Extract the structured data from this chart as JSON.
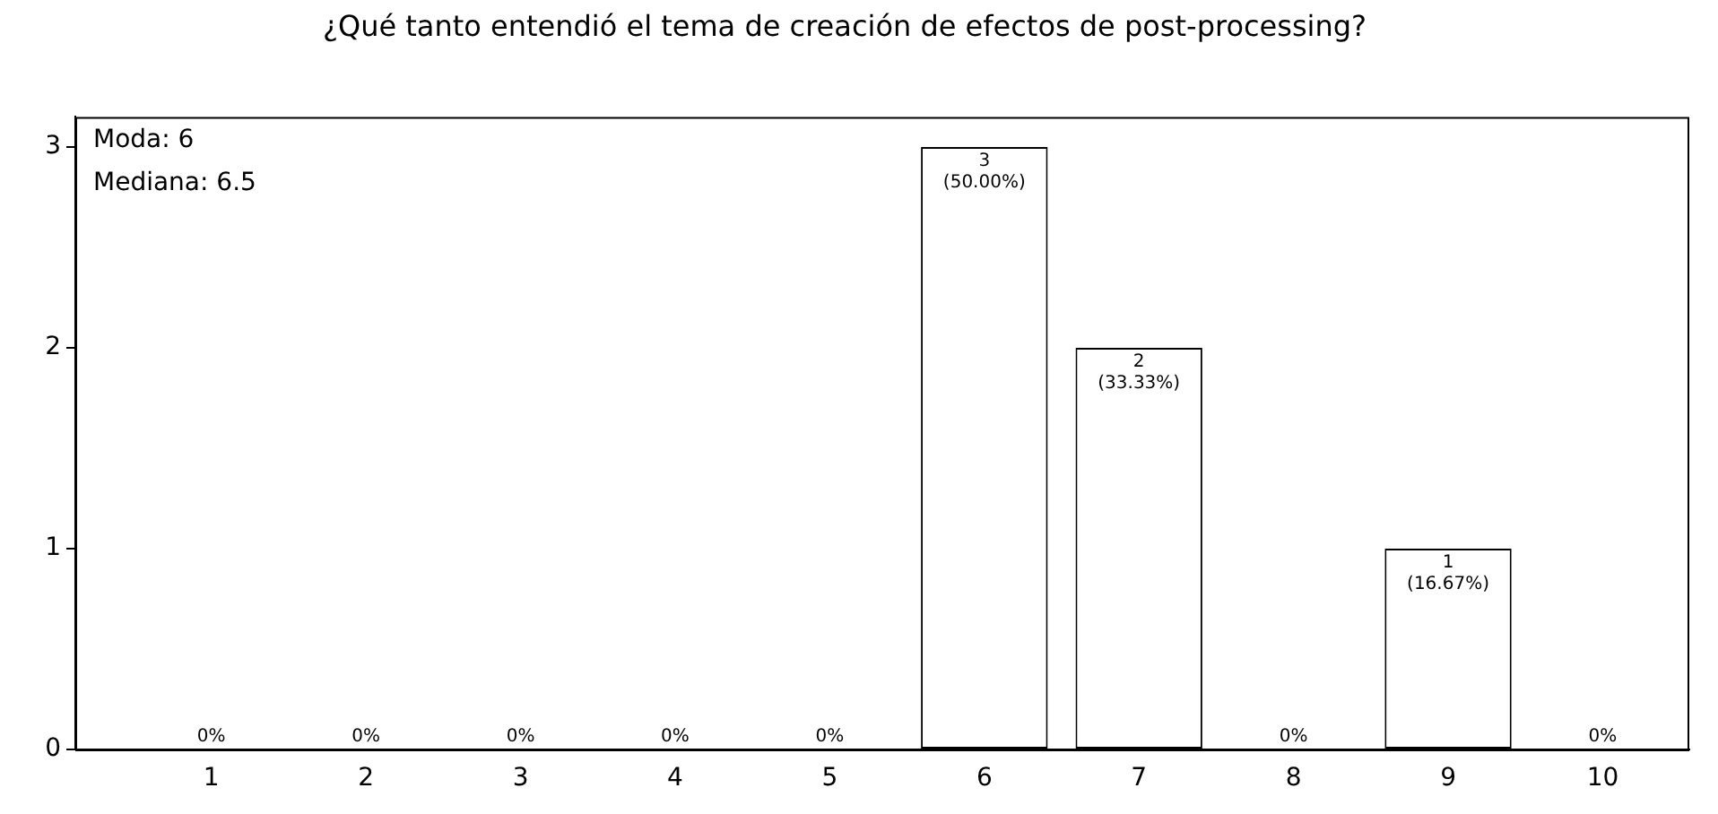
{
  "chart_data": {
    "type": "bar",
    "title": "¿Qué tanto entendió el tema de creación de efectos de post-processing?",
    "x": [
      1,
      2,
      3,
      4,
      5,
      6,
      7,
      8,
      9,
      10
    ],
    "values": [
      0,
      0,
      0,
      0,
      0,
      3,
      2,
      0,
      1,
      0
    ],
    "value_labels": [
      "0%",
      "0%",
      "0%",
      "0%",
      "0%",
      "3\n(50.00%)",
      "2\n(33.33%)",
      "0%",
      "1\n(16.67%)",
      "0%"
    ],
    "color": "#ffffff",
    "xlim": [
      0.12,
      10.56
    ],
    "xticks": [
      1,
      2,
      3,
      4,
      5,
      6,
      7,
      8,
      9,
      10
    ],
    "ylim": [
      0,
      3.15
    ],
    "yticks": [
      0,
      1,
      2,
      3
    ],
    "grid": false,
    "legend": false,
    "annotations": [
      "Moda: 6",
      "Mediana: 6.5"
    ]
  }
}
